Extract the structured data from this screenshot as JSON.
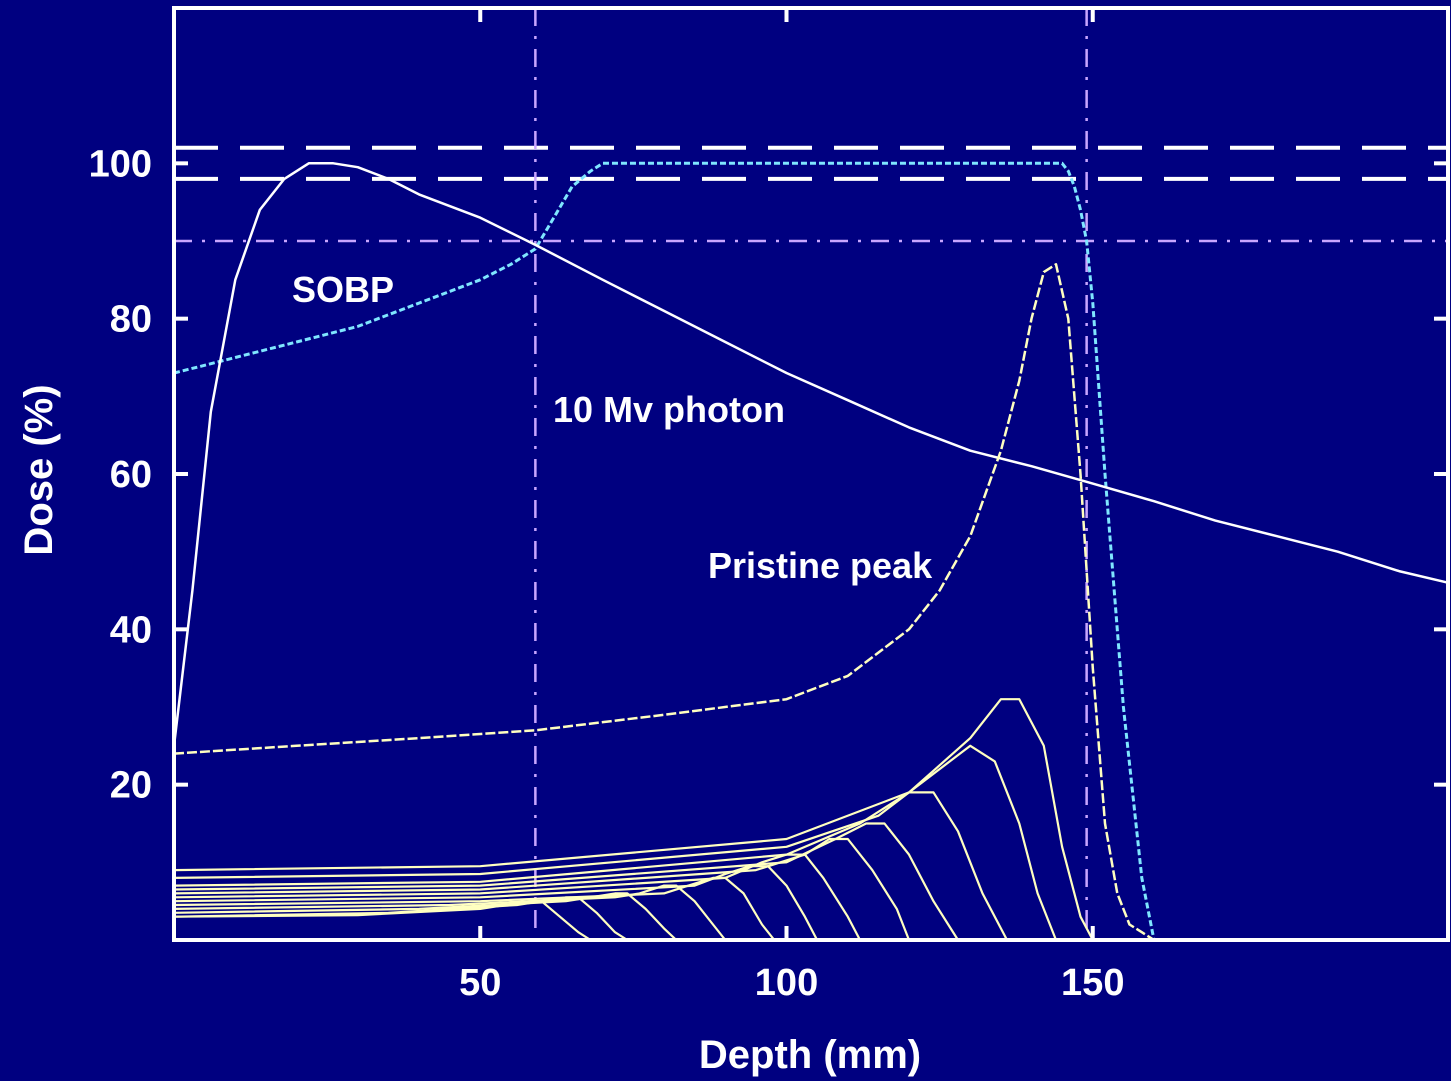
{
  "chart_data": {
    "type": "line",
    "xlabel": "Depth (mm)",
    "ylabel": "Dose (%)",
    "xlim": [
      0,
      208
    ],
    "ylim": [
      0,
      120
    ],
    "x_ticks": [
      50,
      100,
      150
    ],
    "y_ticks": [
      20,
      40,
      60,
      80,
      100
    ],
    "annotations": {
      "sobp": "SOBP",
      "photon": "10 Mv photon",
      "pristine": "Pristine peak"
    },
    "colors": {
      "background": "#000080",
      "axes": "#ffffff",
      "sobp": "#7fe6ff",
      "photon": "#ffffff",
      "pristine": "#ffffc0",
      "reference": "#c9a6ff"
    },
    "reference_lines": {
      "horizontal_dashed": [
        102,
        98
      ],
      "horizontal_dashdot": [
        90
      ],
      "vertical_dashdot": [
        59,
        149
      ]
    },
    "series": [
      {
        "name": "SOBP",
        "x": [
          0,
          5,
          10,
          20,
          30,
          40,
          50,
          55,
          59,
          62,
          65,
          68,
          70,
          80,
          100,
          120,
          140,
          145,
          146,
          147,
          148,
          149,
          150,
          152,
          155,
          158,
          160
        ],
        "y": [
          73,
          74,
          75,
          77,
          79,
          82,
          85,
          87,
          89,
          93,
          97,
          99,
          100,
          100,
          100,
          100,
          100,
          100,
          99,
          97,
          94,
          90,
          82,
          60,
          30,
          8,
          0
        ]
      },
      {
        "name": "10 Mv photon",
        "x": [
          0,
          3,
          6,
          10,
          14,
          18,
          22,
          26,
          30,
          35,
          40,
          50,
          59,
          70,
          80,
          90,
          100,
          110,
          120,
          130,
          140,
          149,
          160,
          170,
          180,
          190,
          200,
          208
        ],
        "y": [
          25,
          45,
          68,
          85,
          94,
          98,
          100,
          100,
          99.5,
          98,
          96,
          93,
          89.5,
          85,
          81,
          77,
          73,
          69.5,
          66,
          63,
          61,
          59,
          56.5,
          54,
          52,
          50,
          47.5,
          46
        ]
      },
      {
        "name": "Pristine peak",
        "x": [
          0,
          20,
          40,
          59,
          80,
          100,
          110,
          120,
          125,
          130,
          135,
          138,
          140,
          142,
          144,
          146,
          148,
          150,
          152,
          154,
          156,
          158,
          160
        ],
        "y": [
          24,
          25,
          26,
          27,
          29,
          31,
          34,
          40,
          45,
          52,
          63,
          72,
          80,
          86,
          87,
          80,
          60,
          35,
          15,
          6,
          2,
          1,
          0
        ]
      },
      {
        "name": "",
        "x": [
          0,
          50,
          100,
          120,
          130,
          135,
          138,
          142,
          145,
          148,
          150
        ],
        "y": [
          9,
          9.5,
          13,
          19,
          26,
          31,
          31,
          25,
          12,
          3,
          0
        ]
      },
      {
        "name": "",
        "x": [
          0,
          50,
          100,
          115,
          125,
          130,
          134,
          138,
          141,
          144
        ],
        "y": [
          8,
          8.5,
          12,
          16,
          22,
          25,
          23,
          15,
          6,
          0
        ]
      },
      {
        "name": "",
        "x": [
          0,
          50,
          100,
          112,
          120,
          124,
          128,
          132,
          136
        ],
        "y": [
          7,
          7.5,
          11,
          15,
          19,
          19,
          14,
          6,
          0
        ]
      },
      {
        "name": "",
        "x": [
          0,
          50,
          100,
          108,
          113,
          116,
          120,
          124,
          128
        ],
        "y": [
          6.5,
          7,
          10,
          13,
          15,
          15,
          11,
          5,
          0
        ]
      },
      {
        "name": "",
        "x": [
          0,
          50,
          95,
          103,
          107,
          110,
          114,
          118,
          120
        ],
        "y": [
          6,
          6.5,
          9,
          11,
          13,
          13,
          9,
          4,
          0
        ]
      },
      {
        "name": "",
        "x": [
          0,
          50,
          90,
          96,
          100,
          103,
          106,
          110,
          112
        ],
        "y": [
          5.5,
          6,
          8,
          10,
          11,
          11,
          8,
          3,
          0
        ]
      },
      {
        "name": "",
        "x": [
          0,
          50,
          85,
          90,
          94,
          97,
          100,
          103,
          105
        ],
        "y": [
          5,
          5.5,
          7,
          8.5,
          9.5,
          9.5,
          7,
          3,
          0
        ]
      },
      {
        "name": "",
        "x": [
          0,
          50,
          80,
          84,
          88,
          90,
          93,
          96,
          98
        ],
        "y": [
          4.5,
          5,
          6,
          7,
          8,
          8,
          6,
          2,
          0
        ]
      },
      {
        "name": "",
        "x": [
          0,
          45,
          72,
          76,
          80,
          82,
          85,
          88,
          90
        ],
        "y": [
          4,
          4.5,
          5.5,
          6,
          7,
          7,
          5,
          2,
          0
        ]
      },
      {
        "name": "",
        "x": [
          0,
          40,
          64,
          68,
          72,
          74,
          77,
          80,
          82
        ],
        "y": [
          3.5,
          4,
          5,
          5.5,
          6,
          6,
          4,
          1.5,
          0
        ]
      },
      {
        "name": "",
        "x": [
          0,
          35,
          56,
          60,
          64,
          66,
          69,
          72,
          74
        ],
        "y": [
          3,
          3.5,
          4.5,
          5,
          5.5,
          5.5,
          3.5,
          1,
          0
        ]
      },
      {
        "name": "",
        "x": [
          0,
          30,
          50,
          54,
          58,
          60,
          63,
          66,
          68
        ],
        "y": [
          3,
          3.2,
          4,
          4.5,
          5,
          5,
          3,
          1,
          0
        ]
      }
    ]
  }
}
